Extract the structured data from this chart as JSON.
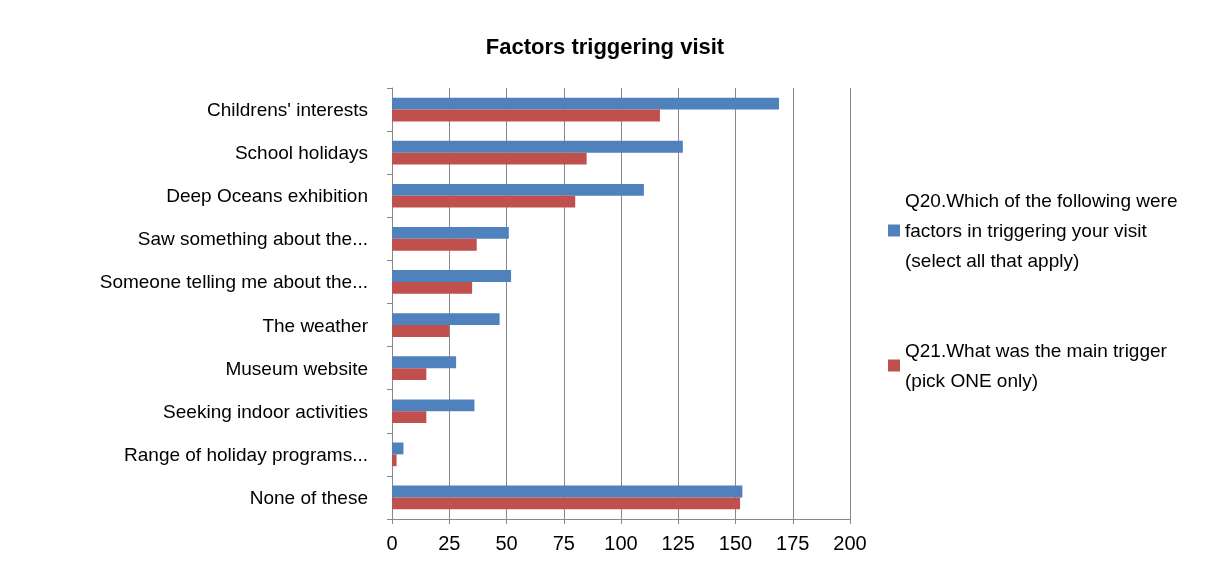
{
  "chart_data": {
    "type": "bar",
    "orientation": "horizontal",
    "title": "Factors triggering visit",
    "categories": [
      "Childrens' interests",
      "School holidays",
      "Deep Oceans exhibition",
      "Saw something about the...",
      "Someone telling me about the...",
      "The weather",
      "Museum website",
      "Seeking indoor activities",
      "Range of holiday programs...",
      "None of these"
    ],
    "series": [
      {
        "name": "Q20.Which of the following were factors in triggering your visit (select all that apply)",
        "color": "#4f81bd",
        "values": [
          169,
          127,
          110,
          51,
          52,
          47,
          28,
          36,
          5,
          153
        ]
      },
      {
        "name": "Q21.What was the main trigger (pick ONE only)",
        "color": "#c0504d",
        "values": [
          117,
          85,
          80,
          37,
          35,
          25,
          15,
          15,
          2,
          152
        ]
      }
    ],
    "xlim": [
      0,
      200
    ],
    "xticks": [
      0,
      25,
      50,
      75,
      100,
      125,
      150,
      175,
      200
    ],
    "grid": "x",
    "legend": "right"
  }
}
